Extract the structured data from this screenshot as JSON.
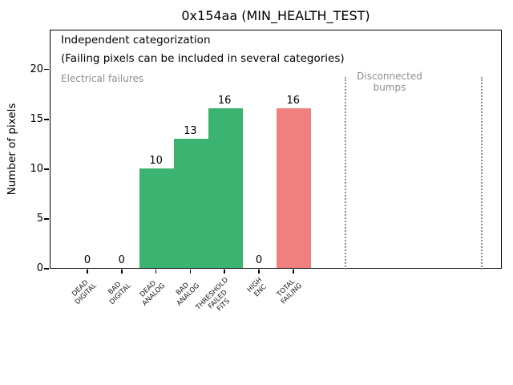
{
  "chart_data": {
    "type": "bar",
    "title": "0x154aa (MIN_HEALTH_TEST)",
    "xlabel": "",
    "ylabel": "Number of pixels",
    "categories": [
      [
        "DEAD",
        "DIGITAL"
      ],
      [
        "BAD",
        "DIGITAL"
      ],
      [
        "DEAD",
        "ANALOG"
      ],
      [
        "BAD",
        "ANALOG"
      ],
      [
        "THRESHOLD",
        "FAILED",
        "FITS"
      ],
      [
        "HIGH",
        "ENC"
      ],
      [
        "TOTAL",
        "FAILING"
      ]
    ],
    "values": [
      0,
      0,
      10,
      13,
      16,
      0,
      16
    ],
    "bar_colors": [
      "#3CB371",
      "#3CB371",
      "#3CB371",
      "#3CB371",
      "#3CB371",
      "#3CB371",
      "#F08080"
    ],
    "value_labels": [
      "0",
      "0",
      "10",
      "13",
      "16",
      "0",
      "16"
    ],
    "yticks": [
      0,
      5,
      10,
      15,
      20
    ],
    "ylim": [
      0,
      24
    ],
    "grid": false,
    "legend": "none",
    "annotations": [
      {
        "text": "Independent categorization",
        "color": "#000000"
      },
      {
        "text": "(Failing pixels can be included in several categories)",
        "color": "#000000"
      },
      {
        "text": "Electrical failures",
        "color": "#8e8e8e"
      },
      {
        "lines": [
          "Disconnected",
          "bumps"
        ],
        "color": "#8e8e8e"
      }
    ],
    "region_divider_color": "#8f8f8f",
    "colors": {
      "bar_green": "#3CB371",
      "bar_red": "#F08080",
      "axis": "#000000",
      "muted_text": "#8e8e8e"
    }
  }
}
